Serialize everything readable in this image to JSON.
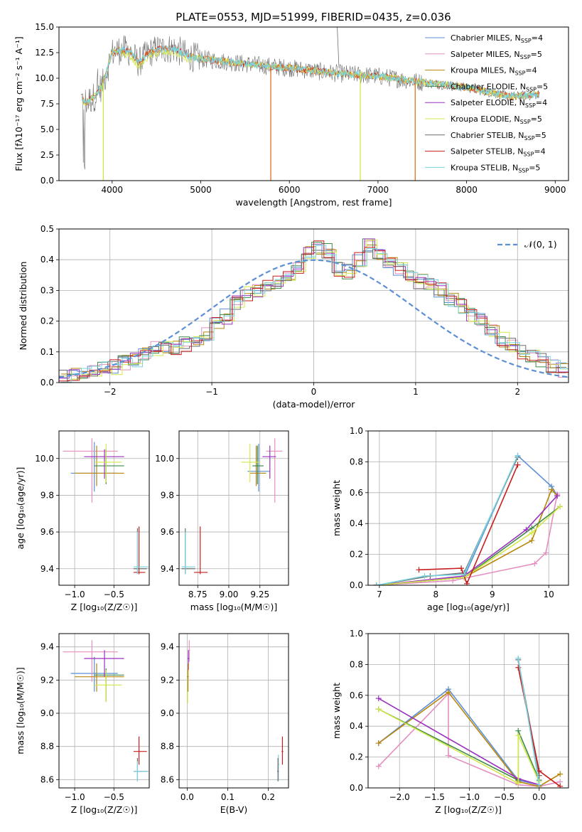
{
  "title": "PLATE=0553, MJD=51999, FIBERID=0435, z=0.036",
  "colors": {
    "Chabrier MILES": "#5b8fd6",
    "Salpeter MILES": "#e48fc0",
    "Kroupa MILES": "#b8860b",
    "Chabrier ELODIE": "#3f8a47",
    "Salpeter ELODIE": "#9b30c0",
    "Kroupa ELODIE": "#d2e84a",
    "Chabrier STELIB": "#6e6e6e",
    "Salpeter STELIB": "#c81e1e",
    "Kroupa STELIB": "#79d3df",
    "model_orange": "#e07020",
    "normal": "#5b8fd6"
  },
  "legend_entries": [
    {
      "label": "Chabrier MILES, N",
      "sub": "SSP",
      "tail": "=4",
      "color": "#5b8fd6"
    },
    {
      "label": "Salpeter MILES, N",
      "sub": "SSP",
      "tail": "=5",
      "color": "#e48fc0"
    },
    {
      "label": "Kroupa MILES, N",
      "sub": "SSP",
      "tail": "=4",
      "color": "#b8860b"
    },
    {
      "label": "Chabrier ELODIE, N",
      "sub": "SSP",
      "tail": "=5",
      "color": "#3f8a47"
    },
    {
      "label": "Salpeter ELODIE, N",
      "sub": "SSP",
      "tail": "=4",
      "color": "#9b30c0"
    },
    {
      "label": "Kroupa ELODIE, N",
      "sub": "SSP",
      "tail": "=5",
      "color": "#d2e84a"
    },
    {
      "label": "Chabrier STELIB, N",
      "sub": "SSP",
      "tail": "=5",
      "color": "#6e6e6e"
    },
    {
      "label": "Salpeter STELIB, N",
      "sub": "SSP",
      "tail": "=4",
      "color": "#c81e1e"
    },
    {
      "label": "Kroupa STELIB, N",
      "sub": "SSP",
      "tail": "=5",
      "color": "#79d3df"
    }
  ],
  "chart_data": [
    {
      "id": "spectrum",
      "type": "line",
      "xlabel": "wavelength [Angstrom, rest frame]",
      "ylabel": "Flux [fλ10⁻¹⁷ erg cm⁻² s⁻¹ A⁻¹]",
      "xlim": [
        3400,
        9150
      ],
      "ylim": [
        0,
        15
      ],
      "xticks": [
        4000,
        5000,
        6000,
        7000,
        8000,
        9000
      ],
      "yticks": [
        0.0,
        2.5,
        5.0,
        7.5,
        10.0,
        12.5,
        15.0
      ],
      "ytick_labels": [
        "0.0",
        "2.5",
        "5.0",
        "7.5",
        "10.0",
        "12.5",
        "15.0"
      ],
      "continuum": {
        "x": [
          3650,
          3700,
          3800,
          3900,
          4000,
          4100,
          4200,
          4300,
          4400,
          4500,
          4700,
          4850,
          5000,
          5200,
          5500,
          6000,
          6500,
          7000,
          7500,
          8000,
          8500,
          8800
        ],
        "y": [
          8.0,
          7.6,
          8.2,
          9.5,
          12.5,
          12.8,
          12.6,
          11.5,
          12.4,
          12.8,
          12.9,
          12.2,
          11.9,
          11.7,
          11.4,
          11.0,
          10.5,
          10.2,
          9.6,
          9.1,
          8.2,
          8.4
        ]
      }
    },
    {
      "id": "residuals",
      "type": "histogram",
      "xlabel": "(data-model)/error",
      "ylabel": "Normed distribution",
      "xlim": [
        -2.5,
        2.5
      ],
      "ylim": [
        0,
        0.5
      ],
      "xticks": [
        -2,
        -1,
        0,
        1,
        2
      ],
      "xtick_labels": [
        "−2",
        "−1",
        "0",
        "1",
        "2"
      ],
      "yticks": [
        0.0,
        0.1,
        0.2,
        0.3,
        0.4,
        0.5
      ],
      "ytick_labels": [
        "0.0",
        "0.1",
        "0.2",
        "0.3",
        "0.4",
        "0.5"
      ],
      "bin_width": 0.1,
      "bins_start": -2.5,
      "base_hist": [
        0.02,
        0.025,
        0.03,
        0.035,
        0.045,
        0.05,
        0.065,
        0.075,
        0.09,
        0.11,
        0.115,
        0.115,
        0.125,
        0.14,
        0.16,
        0.19,
        0.215,
        0.26,
        0.29,
        0.3,
        0.31,
        0.33,
        0.345,
        0.38,
        0.42,
        0.44,
        0.43,
        0.37,
        0.36,
        0.4,
        0.45,
        0.42,
        0.39,
        0.37,
        0.35,
        0.33,
        0.32,
        0.3,
        0.27,
        0.25,
        0.22,
        0.2,
        0.17,
        0.14,
        0.12,
        0.1,
        0.09,
        0.07,
        0.05,
        0.04
      ],
      "legend_label": "𝒩(0, 1)"
    },
    {
      "id": "age-vs-Z",
      "type": "errorbar",
      "xlabel": "Z [log₁₀(Z/Z☉)]",
      "ylabel": "age  [log₁₀(age/yr)]",
      "xlim": [
        -1.2,
        -0.05
      ],
      "ylim": [
        9.31,
        10.15
      ],
      "xticks": [
        -1.0,
        -0.5
      ],
      "xtick_labels": [
        "−1.0",
        "−0.5"
      ],
      "yticks": [
        9.4,
        9.6,
        9.8,
        10.0
      ],
      "ytick_labels": [
        "9.4",
        "9.6",
        "9.8",
        "10.0"
      ]
    },
    {
      "id": "age-vs-mass",
      "type": "errorbar",
      "xlabel": "mass [log₁₀(M/M☉)]",
      "ylabel": "",
      "xlim": [
        8.6,
        9.48
      ],
      "ylim": [
        9.31,
        10.15
      ],
      "xticks": [
        8.75,
        9.0,
        9.25
      ],
      "xtick_labels": [
        "8.75",
        "9.00",
        "9.25"
      ],
      "yticks": [
        9.4,
        9.6,
        9.8,
        10.0
      ],
      "ytick_labels": [
        "9.4",
        "9.6",
        "9.8",
        "10.0"
      ]
    },
    {
      "id": "massweight-vs-age",
      "type": "line",
      "xlabel": "age  [log₁₀(age/yr)]",
      "ylabel": "mass weight",
      "xlim": [
        6.8,
        10.35
      ],
      "ylim": [
        0,
        1
      ],
      "xticks": [
        7,
        8,
        9,
        10
      ],
      "xtick_labels": [
        "7",
        "8",
        "9",
        "10"
      ],
      "yticks": [
        0.0,
        0.2,
        0.4,
        0.6,
        0.8,
        1.0
      ],
      "ytick_labels": [
        "0.0",
        "0.2",
        "0.4",
        "0.6",
        "0.8",
        "1.0"
      ],
      "series": [
        {
          "key": "Chabrier MILES",
          "x": [
            6.95,
            8.5,
            9.45,
            10.05,
            10.15
          ],
          "y": [
            0.0,
            0.05,
            0.84,
            0.64,
            0.58
          ]
        },
        {
          "key": "Salpeter MILES",
          "x": [
            6.95,
            8.3,
            9.75,
            9.95,
            10.15
          ],
          "y": [
            0.0,
            0.03,
            0.14,
            0.21,
            0.59
          ]
        },
        {
          "key": "Kroupa MILES",
          "x": [
            6.95,
            8.5,
            9.7,
            10.05,
            10.15
          ],
          "y": [
            0.0,
            0.05,
            0.29,
            0.62,
            0.58
          ]
        },
        {
          "key": "Chabrier ELODIE",
          "x": [
            6.95,
            8.5,
            9.7,
            10.2
          ],
          "y": [
            0.0,
            0.05,
            0.37,
            0.51
          ]
        },
        {
          "key": "Salpeter ELODIE",
          "x": [
            6.95,
            8.5,
            9.6,
            10.15
          ],
          "y": [
            0.0,
            0.06,
            0.36,
            0.58
          ]
        },
        {
          "key": "Kroupa ELODIE",
          "x": [
            6.95,
            8.5,
            9.7,
            10.2
          ],
          "y": [
            0.0,
            0.05,
            0.34,
            0.51
          ]
        },
        {
          "key": "Chabrier STELIB",
          "x": [
            6.95,
            7.9,
            8.5,
            9.45
          ],
          "y": [
            0.0,
            0.06,
            0.08,
            0.83
          ]
        },
        {
          "key": "Salpeter STELIB",
          "x": [
            7.7,
            8.45,
            8.55,
            9.45
          ],
          "y": [
            0.1,
            0.11,
            0.01,
            0.78
          ]
        },
        {
          "key": "Kroupa STELIB",
          "x": [
            6.95,
            7.8,
            8.5,
            9.45
          ],
          "y": [
            0.0,
            0.06,
            0.07,
            0.84
          ]
        }
      ]
    },
    {
      "id": "mass-vs-Z",
      "type": "errorbar",
      "xlabel": "Z [log₁₀(Z/Z☉)]",
      "ylabel": "mass [log₁₀(M/M☉)]",
      "xlim": [
        -1.2,
        -0.05
      ],
      "ylim": [
        8.55,
        9.48
      ],
      "xticks": [
        -1.0,
        -0.5
      ],
      "xtick_labels": [
        "−1.0",
        "−0.5"
      ],
      "yticks": [
        8.6,
        8.8,
        9.0,
        9.2,
        9.4
      ],
      "ytick_labels": [
        "8.6",
        "8.8",
        "9.0",
        "9.2",
        "9.4"
      ]
    },
    {
      "id": "mass-vs-EBV",
      "type": "errorbar",
      "xlabel": "E(B-V)",
      "ylabel": "",
      "xlim": [
        -0.02,
        0.25
      ],
      "ylim": [
        8.55,
        9.48
      ],
      "xticks": [
        0.0,
        0.1,
        0.2
      ],
      "xtick_labels": [
        "0.0",
        "0.1",
        "0.2"
      ],
      "yticks": [
        8.6,
        8.8,
        9.0,
        9.2,
        9.4
      ],
      "ytick_labels": [
        "8.6",
        "8.8",
        "9.0",
        "9.2",
        "9.4"
      ]
    },
    {
      "id": "massweight-vs-Z",
      "type": "line",
      "xlabel": "Z [log₁₀(Z/Z☉)]",
      "ylabel": "mass weight",
      "xlim": [
        -2.45,
        0.42
      ],
      "ylim": [
        0,
        1
      ],
      "xticks": [
        -2.0,
        -1.5,
        -1.0,
        -0.5,
        0.0
      ],
      "xtick_labels": [
        "−2.0",
        "−1.5",
        "−1.0",
        "−0.5",
        "0.0"
      ],
      "yticks": [
        0.0,
        0.2,
        0.4,
        0.6,
        0.8,
        1.0
      ],
      "ytick_labels": [
        "0.0",
        "0.2",
        "0.4",
        "0.6",
        "0.8",
        "1.0"
      ],
      "series": [
        {
          "key": "Chabrier MILES",
          "x": [
            -2.3,
            -1.3,
            -0.3,
            0.0
          ],
          "y": [
            0.29,
            0.64,
            0.05,
            0.02
          ]
        },
        {
          "key": "Salpeter MILES",
          "x": [
            -2.3,
            -1.3,
            -1.3,
            -0.3,
            0.0,
            0.3
          ],
          "y": [
            0.14,
            0.61,
            0.21,
            0.02,
            0.01,
            0.04
          ]
        },
        {
          "key": "Kroupa MILES",
          "x": [
            -2.3,
            -1.3,
            -0.3,
            0.0,
            0.3
          ],
          "y": [
            0.29,
            0.62,
            0.04,
            0.01,
            0.09
          ]
        },
        {
          "key": "Chabrier ELODIE",
          "x": [
            -2.3,
            -0.3,
            -0.3,
            0.0
          ],
          "y": [
            0.51,
            0.05,
            0.37,
            0.05
          ]
        },
        {
          "key": "Salpeter ELODIE",
          "x": [
            -2.3,
            -0.3,
            0.0
          ],
          "y": [
            0.58,
            0.06,
            0.02
          ]
        },
        {
          "key": "Kroupa ELODIE",
          "x": [
            -2.3,
            -0.3,
            -0.3,
            0.0
          ],
          "y": [
            0.51,
            0.03,
            0.34,
            0.04
          ]
        },
        {
          "key": "Chabrier STELIB",
          "x": [
            -0.3,
            0.0
          ],
          "y": [
            0.83,
            0.08
          ]
        },
        {
          "key": "Salpeter STELIB",
          "x": [
            -0.3,
            0.0,
            0.3
          ],
          "y": [
            0.78,
            0.11,
            0.01
          ]
        },
        {
          "key": "Kroupa STELIB",
          "x": [
            -0.3,
            0.0
          ],
          "y": [
            0.84,
            0.02
          ]
        }
      ]
    }
  ]
}
